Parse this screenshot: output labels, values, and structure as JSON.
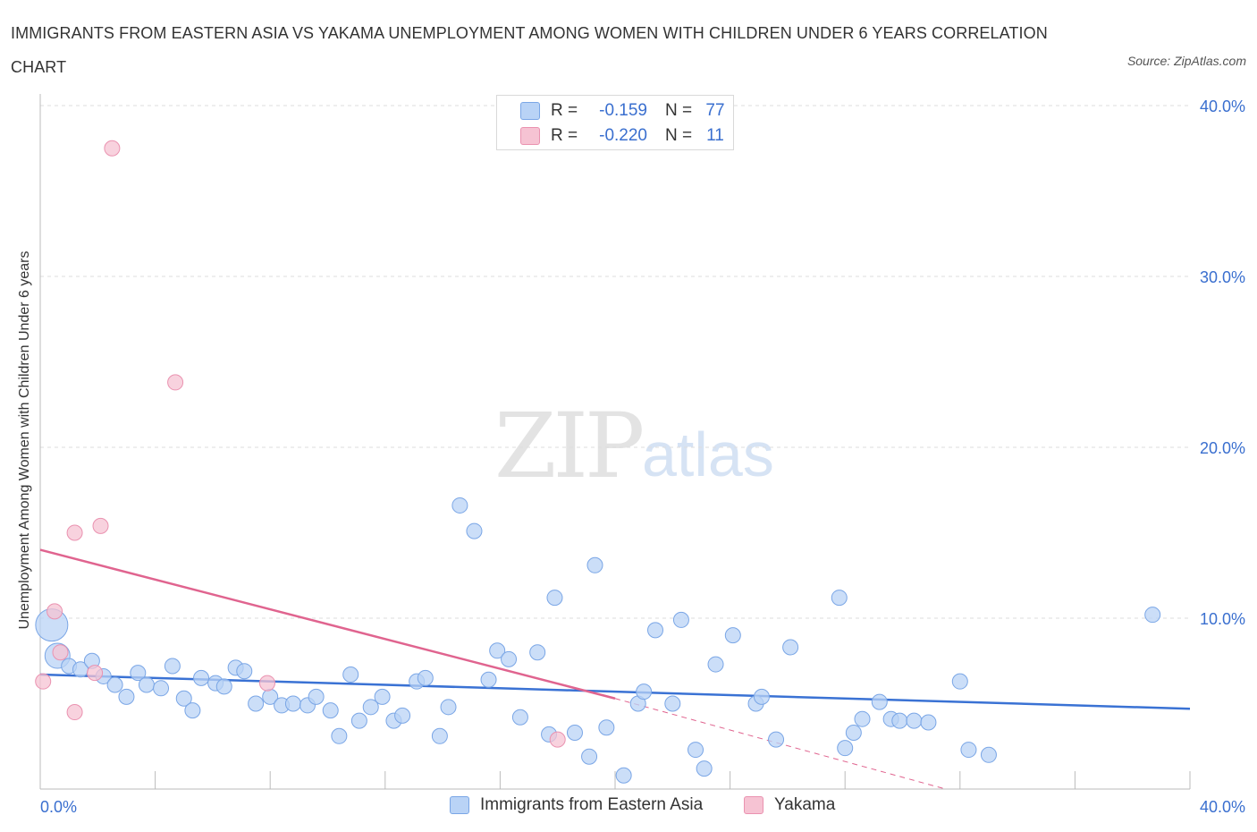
{
  "title": "IMMIGRANTS FROM EASTERN ASIA VS YAKAMA UNEMPLOYMENT AMONG WOMEN WITH CHILDREN UNDER 6 YEARS CORRELATION CHART",
  "source": "Source: ZipAtlas.com",
  "watermark": {
    "zip": "ZIP",
    "atlas": "atlas"
  },
  "colors": {
    "blue": "#3a72d4",
    "blue_fill": "#b9d3f6",
    "pink": "#e0648f",
    "pink_fill": "#f6c3d3",
    "grid": "#dedede",
    "tick_text": "#3a6fcf"
  },
  "legend": {
    "rows": [
      {
        "r_label": "R =",
        "r_value": "-0.159",
        "n_label": "N =",
        "n_value": "77"
      },
      {
        "r_label": "R =",
        "r_value": "-0.220",
        "n_label": "N =",
        "n_value": "11"
      }
    ]
  },
  "bottom_legend": [
    "Immigrants from Eastern Asia",
    "Yakama"
  ],
  "chart_data": {
    "type": "scatter",
    "title": "IMMIGRANTS FROM EASTERN ASIA VS YAKAMA UNEMPLOYMENT AMONG WOMEN WITH CHILDREN UNDER 6 YEARS CORRELATION CHART",
    "xlabel": "",
    "ylabel": "Unemployment Among Women with Children Under 6 years",
    "xlim": [
      0,
      40
    ],
    "ylim": [
      0,
      40
    ],
    "x_tick_labels": [
      "0.0%",
      "40.0%"
    ],
    "y_tick_labels": [
      "10.0%",
      "20.0%",
      "30.0%",
      "40.0%"
    ],
    "y_ticks": [
      10,
      20,
      30,
      40
    ],
    "grid": true,
    "legend_position": "top-center",
    "series": [
      {
        "name": "Immigrants from Eastern Asia",
        "color": "#3a72d4",
        "trend": {
          "x": [
            0,
            40
          ],
          "y": [
            6.7,
            4.7
          ]
        },
        "points": [
          {
            "x": 0.4,
            "y": 9.6,
            "s": 3
          },
          {
            "x": 0.6,
            "y": 7.8,
            "s": 2
          },
          {
            "x": 1.0,
            "y": 7.2
          },
          {
            "x": 1.4,
            "y": 7.0
          },
          {
            "x": 1.8,
            "y": 7.5
          },
          {
            "x": 2.2,
            "y": 6.6
          },
          {
            "x": 2.6,
            "y": 6.1
          },
          {
            "x": 3.0,
            "y": 5.4
          },
          {
            "x": 3.4,
            "y": 6.8
          },
          {
            "x": 3.7,
            "y": 6.1
          },
          {
            "x": 4.2,
            "y": 5.9
          },
          {
            "x": 4.6,
            "y": 7.2
          },
          {
            "x": 5.0,
            "y": 5.3
          },
          {
            "x": 5.3,
            "y": 4.6
          },
          {
            "x": 5.6,
            "y": 6.5
          },
          {
            "x": 6.1,
            "y": 6.2
          },
          {
            "x": 6.4,
            "y": 6.0
          },
          {
            "x": 6.8,
            "y": 7.1
          },
          {
            "x": 7.1,
            "y": 6.9
          },
          {
            "x": 7.5,
            "y": 5.0
          },
          {
            "x": 8.0,
            "y": 5.4
          },
          {
            "x": 8.4,
            "y": 4.9
          },
          {
            "x": 8.8,
            "y": 5.0
          },
          {
            "x": 9.3,
            "y": 4.9
          },
          {
            "x": 9.6,
            "y": 5.4
          },
          {
            "x": 10.1,
            "y": 4.6
          },
          {
            "x": 10.4,
            "y": 3.1
          },
          {
            "x": 10.8,
            "y": 6.7
          },
          {
            "x": 11.1,
            "y": 4.0
          },
          {
            "x": 11.5,
            "y": 4.8
          },
          {
            "x": 11.9,
            "y": 5.4
          },
          {
            "x": 12.3,
            "y": 4.0
          },
          {
            "x": 12.6,
            "y": 4.3
          },
          {
            "x": 13.1,
            "y": 6.3
          },
          {
            "x": 13.4,
            "y": 6.5
          },
          {
            "x": 13.9,
            "y": 3.1
          },
          {
            "x": 14.2,
            "y": 4.8
          },
          {
            "x": 14.6,
            "y": 16.6
          },
          {
            "x": 15.1,
            "y": 15.1
          },
          {
            "x": 15.6,
            "y": 6.4
          },
          {
            "x": 15.9,
            "y": 8.1
          },
          {
            "x": 16.3,
            "y": 7.6
          },
          {
            "x": 16.7,
            "y": 4.2
          },
          {
            "x": 17.3,
            "y": 8.0
          },
          {
            "x": 17.7,
            "y": 3.2
          },
          {
            "x": 17.9,
            "y": 11.2
          },
          {
            "x": 18.6,
            "y": 3.3
          },
          {
            "x": 19.1,
            "y": 1.9
          },
          {
            "x": 19.3,
            "y": 13.1
          },
          {
            "x": 19.7,
            "y": 3.6
          },
          {
            "x": 20.3,
            "y": 0.8
          },
          {
            "x": 20.8,
            "y": 5.0
          },
          {
            "x": 21.0,
            "y": 5.7
          },
          {
            "x": 21.4,
            "y": 9.3
          },
          {
            "x": 22.0,
            "y": 5.0
          },
          {
            "x": 22.3,
            "y": 9.9
          },
          {
            "x": 22.8,
            "y": 2.3
          },
          {
            "x": 23.1,
            "y": 1.2
          },
          {
            "x": 23.5,
            "y": 7.3
          },
          {
            "x": 24.1,
            "y": 9.0
          },
          {
            "x": 24.9,
            "y": 5.0
          },
          {
            "x": 25.1,
            "y": 5.4
          },
          {
            "x": 25.6,
            "y": 2.9
          },
          {
            "x": 26.1,
            "y": 8.3
          },
          {
            "x": 27.8,
            "y": 11.2
          },
          {
            "x": 28.0,
            "y": 2.4
          },
          {
            "x": 28.3,
            "y": 3.3
          },
          {
            "x": 28.6,
            "y": 4.1
          },
          {
            "x": 29.2,
            "y": 5.1
          },
          {
            "x": 29.6,
            "y": 4.1
          },
          {
            "x": 29.9,
            "y": 4.0
          },
          {
            "x": 30.4,
            "y": 4.0
          },
          {
            "x": 30.9,
            "y": 3.9
          },
          {
            "x": 32.0,
            "y": 6.3
          },
          {
            "x": 32.3,
            "y": 2.3
          },
          {
            "x": 33.0,
            "y": 2.0
          },
          {
            "x": 38.7,
            "y": 10.2
          }
        ]
      },
      {
        "name": "Yakama",
        "color": "#e0648f",
        "trend": {
          "x": [
            0,
            20.0
          ],
          "y": [
            14.0,
            5.3
          ]
        },
        "trend_dashed": {
          "x": [
            20.0,
            31.5
          ],
          "y": [
            5.3,
            0.0
          ]
        },
        "points": [
          {
            "x": 0.1,
            "y": 6.3
          },
          {
            "x": 0.5,
            "y": 10.4
          },
          {
            "x": 0.7,
            "y": 8.0
          },
          {
            "x": 1.2,
            "y": 4.5
          },
          {
            "x": 1.2,
            "y": 15.0
          },
          {
            "x": 1.9,
            "y": 6.8
          },
          {
            "x": 2.1,
            "y": 15.4
          },
          {
            "x": 2.5,
            "y": 37.5
          },
          {
            "x": 4.7,
            "y": 23.8
          },
          {
            "x": 7.9,
            "y": 6.2
          },
          {
            "x": 18.0,
            "y": 2.9
          }
        ]
      }
    ]
  }
}
